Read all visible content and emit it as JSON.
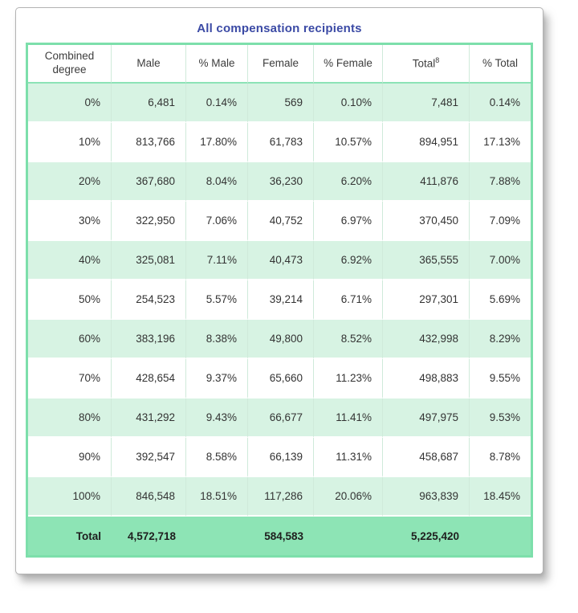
{
  "chart_data": {
    "type": "table",
    "title": "All compensation recipients",
    "columns": [
      {
        "label": "Combined degree",
        "sup": ""
      },
      {
        "label": "Male",
        "sup": ""
      },
      {
        "label": "% Male",
        "sup": ""
      },
      {
        "label": "Female",
        "sup": ""
      },
      {
        "label": "% Female",
        "sup": ""
      },
      {
        "label": "Total",
        "sup": "8"
      },
      {
        "label": "% Total",
        "sup": ""
      }
    ],
    "rows": [
      [
        "0%",
        "6,481",
        "0.14%",
        "569",
        "0.10%",
        "7,481",
        "0.14%"
      ],
      [
        "10%",
        "813,766",
        "17.80%",
        "61,783",
        "10.57%",
        "894,951",
        "17.13%"
      ],
      [
        "20%",
        "367,680",
        "8.04%",
        "36,230",
        "6.20%",
        "411,876",
        "7.88%"
      ],
      [
        "30%",
        "322,950",
        "7.06%",
        "40,752",
        "6.97%",
        "370,450",
        "7.09%"
      ],
      [
        "40%",
        "325,081",
        "7.11%",
        "40,473",
        "6.92%",
        "365,555",
        "7.00%"
      ],
      [
        "50%",
        "254,523",
        "5.57%",
        "39,214",
        "6.71%",
        "297,301",
        "5.69%"
      ],
      [
        "60%",
        "383,196",
        "8.38%",
        "49,800",
        "8.52%",
        "432,998",
        "8.29%"
      ],
      [
        "70%",
        "428,654",
        "9.37%",
        "65,660",
        "11.23%",
        "498,883",
        "9.55%"
      ],
      [
        "80%",
        "431,292",
        "9.43%",
        "66,677",
        "11.41%",
        "497,975",
        "9.53%"
      ],
      [
        "90%",
        "392,547",
        "8.58%",
        "66,139",
        "11.31%",
        "458,687",
        "8.78%"
      ],
      [
        "100%",
        "846,548",
        "18.51%",
        "117,286",
        "20.06%",
        "963,839",
        "18.45%"
      ]
    ],
    "total_row": [
      "Total",
      "4,572,718",
      "",
      "584,583",
      "",
      "5,225,420",
      ""
    ],
    "layout_hints": {
      "row_striping": "mint-green alternating with white, header white, total row darker green",
      "alignment": "numeric cells right-aligned, headers centered"
    }
  },
  "colors": {
    "title_blue": "#3b4aa5",
    "table_border_green": "#7ddfab",
    "row_mint": "#d7f3e3",
    "row_white": "#ffffff",
    "total_row_green": "#8de4b5",
    "cell_divider_green": "#cfeada",
    "text_dark": "#333333"
  }
}
